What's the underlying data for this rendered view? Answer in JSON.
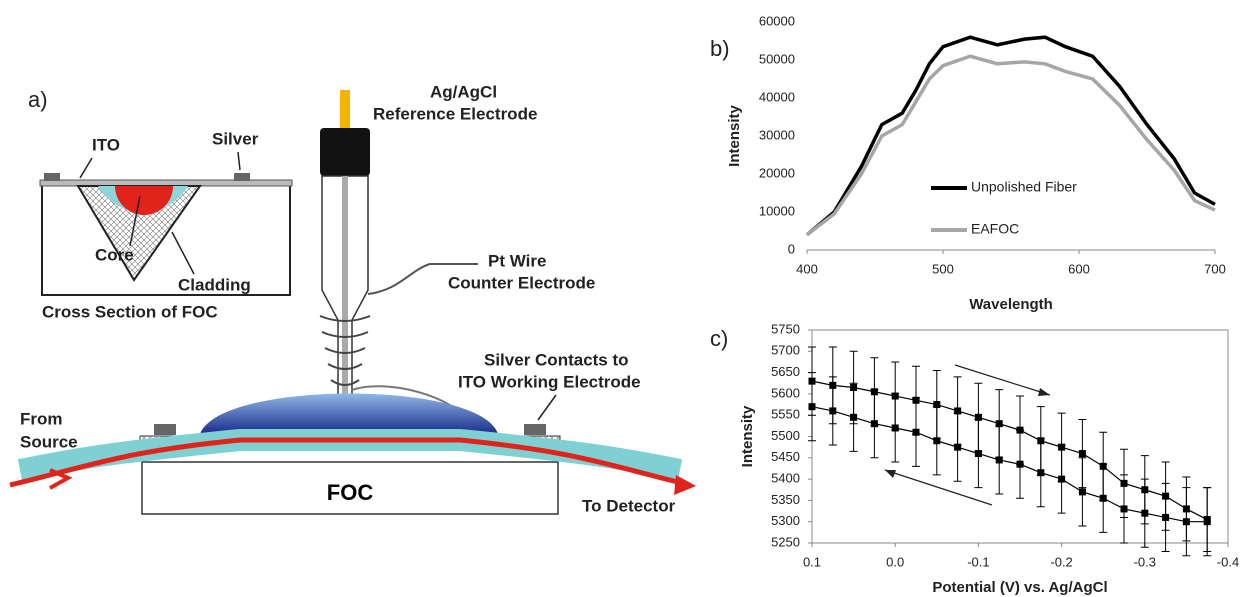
{
  "diagram": {
    "panel_label": "a)",
    "reference_1": "Ag/AgCl",
    "reference_2": "Reference Electrode",
    "counter_1": "Pt Wire",
    "counter_2": "Counter Electrode",
    "ito": "ITO",
    "silver": "Silver",
    "core": "Core",
    "cladding": "Cladding",
    "cross_section": "Cross Section of FOC",
    "contacts_1": "Silver Contacts to",
    "contacts_2": "ITO Working Electrode",
    "from_1": "From",
    "from_2": "Source",
    "foc": "FOC",
    "to_detector": "To Detector"
  },
  "chart_data": [
    {
      "type": "line",
      "panel_label": "b)",
      "xlabel": "Wavelength",
      "ylabel": "Intensity",
      "x": [
        400,
        420,
        440,
        455,
        470,
        480,
        490,
        500,
        520,
        540,
        560,
        575,
        590,
        610,
        630,
        650,
        670,
        685,
        700
      ],
      "series": [
        {
          "name": "Unpolished Fiber",
          "color": "#000000",
          "values": [
            4000,
            10000,
            22000,
            33000,
            36000,
            42000,
            49000,
            53500,
            56000,
            54000,
            55500,
            56000,
            53500,
            51000,
            43000,
            33000,
            24000,
            15000,
            12000
          ]
        },
        {
          "name": "EAFOC",
          "color": "#a6a6a6",
          "values": [
            4000,
            9500,
            20000,
            30000,
            33000,
            39000,
            45000,
            48500,
            51000,
            49000,
            49500,
            49000,
            47000,
            45000,
            38000,
            29000,
            21000,
            13000,
            10500
          ]
        }
      ],
      "xlim": [
        400,
        700
      ],
      "xticks": [
        400,
        500,
        600,
        700
      ],
      "ylim": [
        0,
        60000
      ],
      "yticks": [
        0,
        10000,
        20000,
        30000,
        40000,
        50000,
        60000
      ],
      "legend": "lower center"
    },
    {
      "type": "line",
      "panel_label": "c)",
      "xlabel": "Potential (V) vs. Ag/AgCl",
      "ylabel": "Intensity",
      "markers": true,
      "x": [
        0.1,
        0.075,
        0.05,
        0.025,
        0,
        -0.025,
        -0.05,
        -0.075,
        -0.1,
        -0.125,
        -0.15,
        -0.175,
        -0.2,
        -0.225,
        -0.25,
        -0.275,
        -0.3,
        -0.325,
        -0.35,
        -0.375
      ],
      "series": [
        {
          "color": "#000000",
          "values": [
            5630,
            5620,
            5615,
            5605,
            5595,
            5585,
            5575,
            5560,
            5545,
            5530,
            5515,
            5490,
            5475,
            5460,
            5430,
            5390,
            5375,
            5360,
            5330,
            5305
          ],
          "errors": [
            80,
            90,
            85,
            80,
            80,
            80,
            80,
            80,
            80,
            80,
            80,
            80,
            80,
            80,
            80,
            80,
            80,
            80,
            75,
            75
          ]
        },
        {
          "color": "#000000",
          "values": [
            5570,
            5560,
            5545,
            5530,
            5520,
            5510,
            5490,
            5475,
            5460,
            5445,
            5435,
            5415,
            5400,
            5370,
            5355,
            5330,
            5320,
            5310,
            5300,
            5300
          ],
          "errors": [
            80,
            80,
            80,
            80,
            80,
            80,
            80,
            80,
            80,
            80,
            80,
            80,
            80,
            80,
            80,
            80,
            80,
            80,
            80,
            80
          ]
        }
      ],
      "xlim": [
        0.1,
        -0.4
      ],
      "xticks": [
        0.1,
        {
          "value": 0,
          "label": "0.0"
        },
        -0.1,
        -0.2,
        -0.3,
        -0.4
      ],
      "ylim": [
        5250,
        5750
      ],
      "yticks": [
        5250,
        5300,
        5350,
        5400,
        5450,
        5500,
        5550,
        5600,
        5650,
        5700,
        5750
      ]
    }
  ]
}
